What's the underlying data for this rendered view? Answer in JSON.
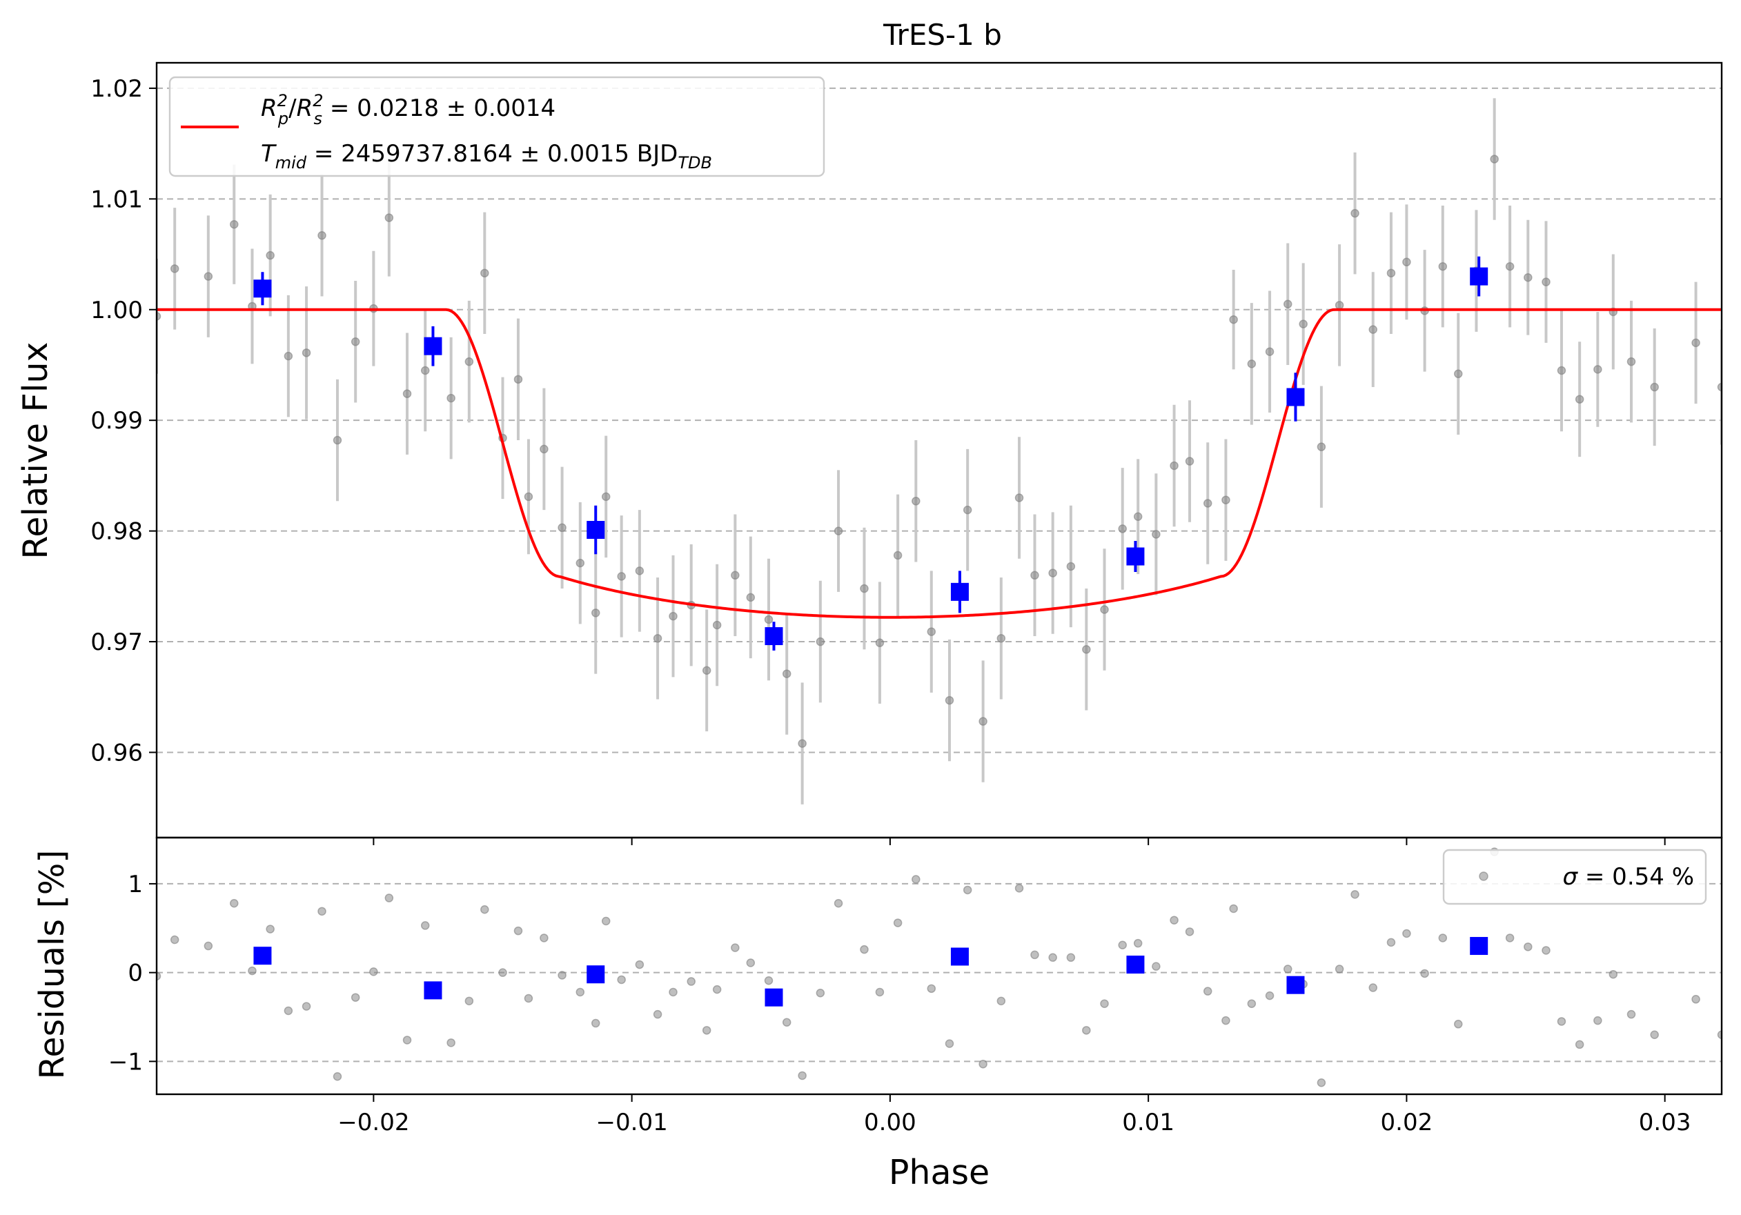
{
  "chart_data": [
    {
      "panel": "main",
      "type": "scatter",
      "title": "TrES-1 b",
      "xlabel": "",
      "ylabel": "Relative Flux",
      "xlim": [
        -0.0284,
        0.0322
      ],
      "ylim": [
        0.9523,
        1.0223
      ],
      "x_ticks": [
        -0.02,
        -0.01,
        0.0,
        0.01,
        0.02,
        0.03
      ],
      "y_ticks": [
        0.96,
        0.97,
        0.98,
        0.99,
        1.0,
        1.01,
        1.02
      ],
      "y_tick_labels": [
        "0.96",
        "0.97",
        "0.98",
        "0.99",
        "1.00",
        "1.01",
        "1.02"
      ],
      "grid": "horizontal dashed",
      "legend_position": "top-left",
      "legend": {
        "line1_a": "R",
        "line1_a_sub": "p",
        "line1_a_sup": "2",
        "line1_slash": "/",
        "line1_b": "R",
        "line1_b_sub": "s",
        "line1_b_sup": "2",
        "line1_rest": " = 0.0218 ± 0.0014",
        "line2_a": "T",
        "line2_a_sub": "mid",
        "line2_rest": " = 2459737.8164 ± 0.0015 BJD",
        "line2_sub": "TDB"
      },
      "model": {
        "color": "#ff0000",
        "depth": 0.0278,
        "t14_half": 0.0172,
        "t23_half": 0.0128
      },
      "raw_color": "#808080",
      "raw_err_color": "#c8c8c8",
      "binned_color": "#0000ff",
      "raw_points": [
        [
          -0.0284,
          0.9994,
          0.0052
        ],
        [
          -0.0277,
          1.0037,
          0.0055
        ],
        [
          -0.0264,
          1.003,
          0.0055
        ],
        [
          -0.0254,
          1.0077,
          0.0054
        ],
        [
          -0.0247,
          1.0003,
          0.0052
        ],
        [
          -0.024,
          1.0049,
          0.0055
        ],
        [
          -0.0233,
          0.9958,
          0.0055
        ],
        [
          -0.0226,
          0.9961,
          0.006
        ],
        [
          -0.022,
          1.0067,
          0.0055
        ],
        [
          -0.0214,
          0.9882,
          0.0055
        ],
        [
          -0.0207,
          0.9971,
          0.0055
        ],
        [
          -0.02,
          1.0001,
          0.0052
        ],
        [
          -0.0194,
          1.0083,
          0.0053
        ],
        [
          -0.0187,
          0.9924,
          0.0055
        ],
        [
          -0.018,
          0.9945,
          0.0055
        ],
        [
          -0.017,
          0.992,
          0.0055
        ],
        [
          -0.0163,
          0.9953,
          0.0055
        ],
        [
          -0.0157,
          1.0033,
          0.0055
        ],
        [
          -0.015,
          0.9884,
          0.0055
        ],
        [
          -0.0144,
          0.9937,
          0.0055
        ],
        [
          -0.014,
          0.9831,
          0.0052
        ],
        [
          -0.0134,
          0.9874,
          0.0055
        ],
        [
          -0.0127,
          0.9803,
          0.0055
        ],
        [
          -0.012,
          0.9771,
          0.0055
        ],
        [
          -0.0114,
          0.9726,
          0.0055
        ],
        [
          -0.011,
          0.9831,
          0.0055
        ],
        [
          -0.0104,
          0.9759,
          0.0055
        ],
        [
          -0.0097,
          0.9764,
          0.0055
        ],
        [
          -0.009,
          0.9703,
          0.0055
        ],
        [
          -0.0084,
          0.9723,
          0.0055
        ],
        [
          -0.0077,
          0.9733,
          0.0055
        ],
        [
          -0.0071,
          0.9674,
          0.0055
        ],
        [
          -0.0067,
          0.9715,
          0.0055
        ],
        [
          -0.006,
          0.976,
          0.0055
        ],
        [
          -0.0054,
          0.974,
          0.0055
        ],
        [
          -0.0047,
          0.972,
          0.0055
        ],
        [
          -0.004,
          0.9671,
          0.0055
        ],
        [
          -0.0034,
          0.9608,
          0.0055
        ],
        [
          -0.0027,
          0.97,
          0.0055
        ],
        [
          -0.002,
          0.98,
          0.0055
        ],
        [
          -0.001,
          0.9748,
          0.0055
        ],
        [
          -0.0004,
          0.9699,
          0.0055
        ],
        [
          0.0003,
          0.9778,
          0.0055
        ],
        [
          0.001,
          0.9827,
          0.0055
        ],
        [
          0.0016,
          0.9709,
          0.0055
        ],
        [
          0.0023,
          0.9647,
          0.0055
        ],
        [
          0.003,
          0.9819,
          0.0055
        ],
        [
          0.0036,
          0.9628,
          0.0055
        ],
        [
          0.0043,
          0.9703,
          0.0055
        ],
        [
          0.005,
          0.983,
          0.0055
        ],
        [
          0.0056,
          0.976,
          0.0055
        ],
        [
          0.0063,
          0.9762,
          0.0055
        ],
        [
          0.007,
          0.9768,
          0.0055
        ],
        [
          0.0076,
          0.9693,
          0.0055
        ],
        [
          0.0083,
          0.9729,
          0.0055
        ],
        [
          0.009,
          0.9802,
          0.0055
        ],
        [
          0.0096,
          0.9813,
          0.0052
        ],
        [
          0.0103,
          0.9797,
          0.0055
        ],
        [
          0.011,
          0.9859,
          0.0055
        ],
        [
          0.0116,
          0.9863,
          0.0055
        ],
        [
          0.0123,
          0.9825,
          0.0055
        ],
        [
          0.013,
          0.9828,
          0.0055
        ],
        [
          0.0133,
          0.9991,
          0.0045
        ],
        [
          0.014,
          0.9951,
          0.0055
        ],
        [
          0.0147,
          0.9962,
          0.0055
        ],
        [
          0.0154,
          1.0005,
          0.0055
        ],
        [
          0.016,
          0.9987,
          0.0055
        ],
        [
          0.0167,
          0.9876,
          0.0055
        ],
        [
          0.0174,
          1.0004,
          0.0055
        ],
        [
          0.018,
          1.0087,
          0.0055
        ],
        [
          0.0187,
          0.9982,
          0.0052
        ],
        [
          0.0194,
          1.0033,
          0.0055
        ],
        [
          0.02,
          1.0043,
          0.0052
        ],
        [
          0.0207,
          0.9999,
          0.0055
        ],
        [
          0.0214,
          1.0039,
          0.0055
        ],
        [
          0.022,
          0.9942,
          0.0055
        ],
        [
          0.0227,
          1.0035,
          0.0055
        ],
        [
          0.0234,
          1.0136,
          0.0055
        ],
        [
          0.024,
          1.0039,
          0.0055
        ],
        [
          0.0247,
          1.0029,
          0.0052
        ],
        [
          0.0254,
          1.0025,
          0.0055
        ],
        [
          0.026,
          0.9945,
          0.0055
        ],
        [
          0.0267,
          0.9919,
          0.0052
        ],
        [
          0.0274,
          0.9946,
          0.0052
        ],
        [
          0.028,
          0.9998,
          0.0052
        ],
        [
          0.0287,
          0.9953,
          0.0055
        ],
        [
          0.0296,
          0.993,
          0.0053
        ],
        [
          0.0312,
          0.997,
          0.0055
        ],
        [
          0.0322,
          0.993,
          0.0052
        ]
      ],
      "binned_points": [
        [
          -0.0243,
          1.0019,
          0.0015
        ],
        [
          -0.0177,
          0.9967,
          0.0018
        ],
        [
          -0.0114,
          0.9801,
          0.0022
        ],
        [
          -0.0045,
          0.9705,
          0.0013
        ],
        [
          0.0027,
          0.9745,
          0.0019
        ],
        [
          0.0095,
          0.9777,
          0.0014
        ],
        [
          0.0157,
          0.9921,
          0.0022
        ],
        [
          0.0228,
          1.003,
          0.0018
        ]
      ]
    },
    {
      "panel": "residuals",
      "type": "scatter",
      "xlabel": "Phase",
      "ylabel": "Residuals [%]",
      "xlim": [
        -0.0284,
        0.0322
      ],
      "ylim": [
        -1.37,
        1.52
      ],
      "x_ticks": [
        -0.02,
        -0.01,
        0.0,
        0.01,
        0.02,
        0.03
      ],
      "x_tick_labels": [
        "−0.02",
        "−0.01",
        "0.00",
        "0.01",
        "0.02",
        "0.03"
      ],
      "y_ticks": [
        -1,
        0,
        1
      ],
      "y_tick_labels": [
        "−1",
        "0",
        "1"
      ],
      "grid": "horizontal dashed",
      "legend_position": "top-right",
      "legend": {
        "sigma_symbol": "σ",
        "sigma_text": " = 0.54 %"
      },
      "residuals": [
        [
          -0.0284,
          -0.04
        ],
        [
          -0.0277,
          0.37
        ],
        [
          -0.0264,
          0.3
        ],
        [
          -0.0254,
          0.78
        ],
        [
          -0.0247,
          0.02
        ],
        [
          -0.024,
          0.49
        ],
        [
          -0.0233,
          -0.43
        ],
        [
          -0.0226,
          -0.38
        ],
        [
          -0.022,
          0.69
        ],
        [
          -0.0214,
          -1.17
        ],
        [
          -0.0207,
          -0.28
        ],
        [
          -0.02,
          0.01
        ],
        [
          -0.0194,
          0.84
        ],
        [
          -0.0187,
          -0.76
        ],
        [
          -0.018,
          0.53
        ],
        [
          -0.017,
          -0.79
        ],
        [
          -0.0163,
          -0.32
        ],
        [
          -0.0157,
          0.71
        ],
        [
          -0.015,
          0.0
        ],
        [
          -0.0144,
          0.47
        ],
        [
          -0.014,
          -0.29
        ],
        [
          -0.0134,
          0.39
        ],
        [
          -0.0127,
          -0.03
        ],
        [
          -0.012,
          -0.22
        ],
        [
          -0.0114,
          -0.57
        ],
        [
          -0.011,
          0.58
        ],
        [
          -0.0104,
          -0.08
        ],
        [
          -0.0097,
          0.09
        ],
        [
          -0.009,
          -0.47
        ],
        [
          -0.0084,
          -0.22
        ],
        [
          -0.0077,
          -0.1
        ],
        [
          -0.0071,
          -0.65
        ],
        [
          -0.0067,
          -0.19
        ],
        [
          -0.006,
          0.28
        ],
        [
          -0.0054,
          0.11
        ],
        [
          -0.0047,
          -0.09
        ],
        [
          -0.004,
          -0.56
        ],
        [
          -0.0034,
          -1.16
        ],
        [
          -0.0027,
          -0.23
        ],
        [
          -0.002,
          0.78
        ],
        [
          -0.001,
          0.26
        ],
        [
          -0.0004,
          -0.22
        ],
        [
          0.0003,
          0.56
        ],
        [
          0.001,
          1.05
        ],
        [
          0.0016,
          -0.18
        ],
        [
          0.0023,
          -0.8
        ],
        [
          0.003,
          0.93
        ],
        [
          0.0036,
          -1.03
        ],
        [
          0.0043,
          -0.32
        ],
        [
          0.005,
          0.95
        ],
        [
          0.0056,
          0.2
        ],
        [
          0.0063,
          0.17
        ],
        [
          0.007,
          0.17
        ],
        [
          0.0076,
          -0.65
        ],
        [
          0.0083,
          -0.35
        ],
        [
          0.009,
          0.31
        ],
        [
          0.0096,
          0.33
        ],
        [
          0.0103,
          0.07
        ],
        [
          0.011,
          0.59
        ],
        [
          0.0116,
          0.46
        ],
        [
          0.0123,
          -0.21
        ],
        [
          0.013,
          -0.54
        ],
        [
          0.0133,
          0.72
        ],
        [
          0.014,
          -0.35
        ],
        [
          0.0147,
          -0.26
        ],
        [
          0.0154,
          0.04
        ],
        [
          0.016,
          -0.13
        ],
        [
          0.0167,
          -1.24
        ],
        [
          0.0174,
          0.04
        ],
        [
          0.018,
          0.88
        ],
        [
          0.0187,
          -0.17
        ],
        [
          0.0194,
          0.34
        ],
        [
          0.02,
          0.44
        ],
        [
          0.0207,
          -0.01
        ],
        [
          0.0214,
          0.39
        ],
        [
          0.022,
          -0.58
        ],
        [
          0.0227,
          0.35
        ],
        [
          0.0234,
          1.36
        ],
        [
          0.024,
          0.39
        ],
        [
          0.0247,
          0.29
        ],
        [
          0.0254,
          0.25
        ],
        [
          0.026,
          -0.55
        ],
        [
          0.0267,
          -0.81
        ],
        [
          0.0274,
          -0.54
        ],
        [
          0.028,
          -0.02
        ],
        [
          0.0287,
          -0.47
        ],
        [
          0.0296,
          -0.7
        ],
        [
          0.0312,
          -0.3
        ],
        [
          0.0322,
          -0.7
        ]
      ],
      "binned_residuals": [
        [
          -0.0243,
          0.19
        ],
        [
          -0.0177,
          -0.2
        ],
        [
          -0.0114,
          -0.02
        ],
        [
          -0.0045,
          -0.28
        ],
        [
          0.0027,
          0.18
        ],
        [
          0.0095,
          0.09
        ],
        [
          0.0157,
          -0.14
        ],
        [
          0.0228,
          0.3
        ]
      ]
    }
  ]
}
